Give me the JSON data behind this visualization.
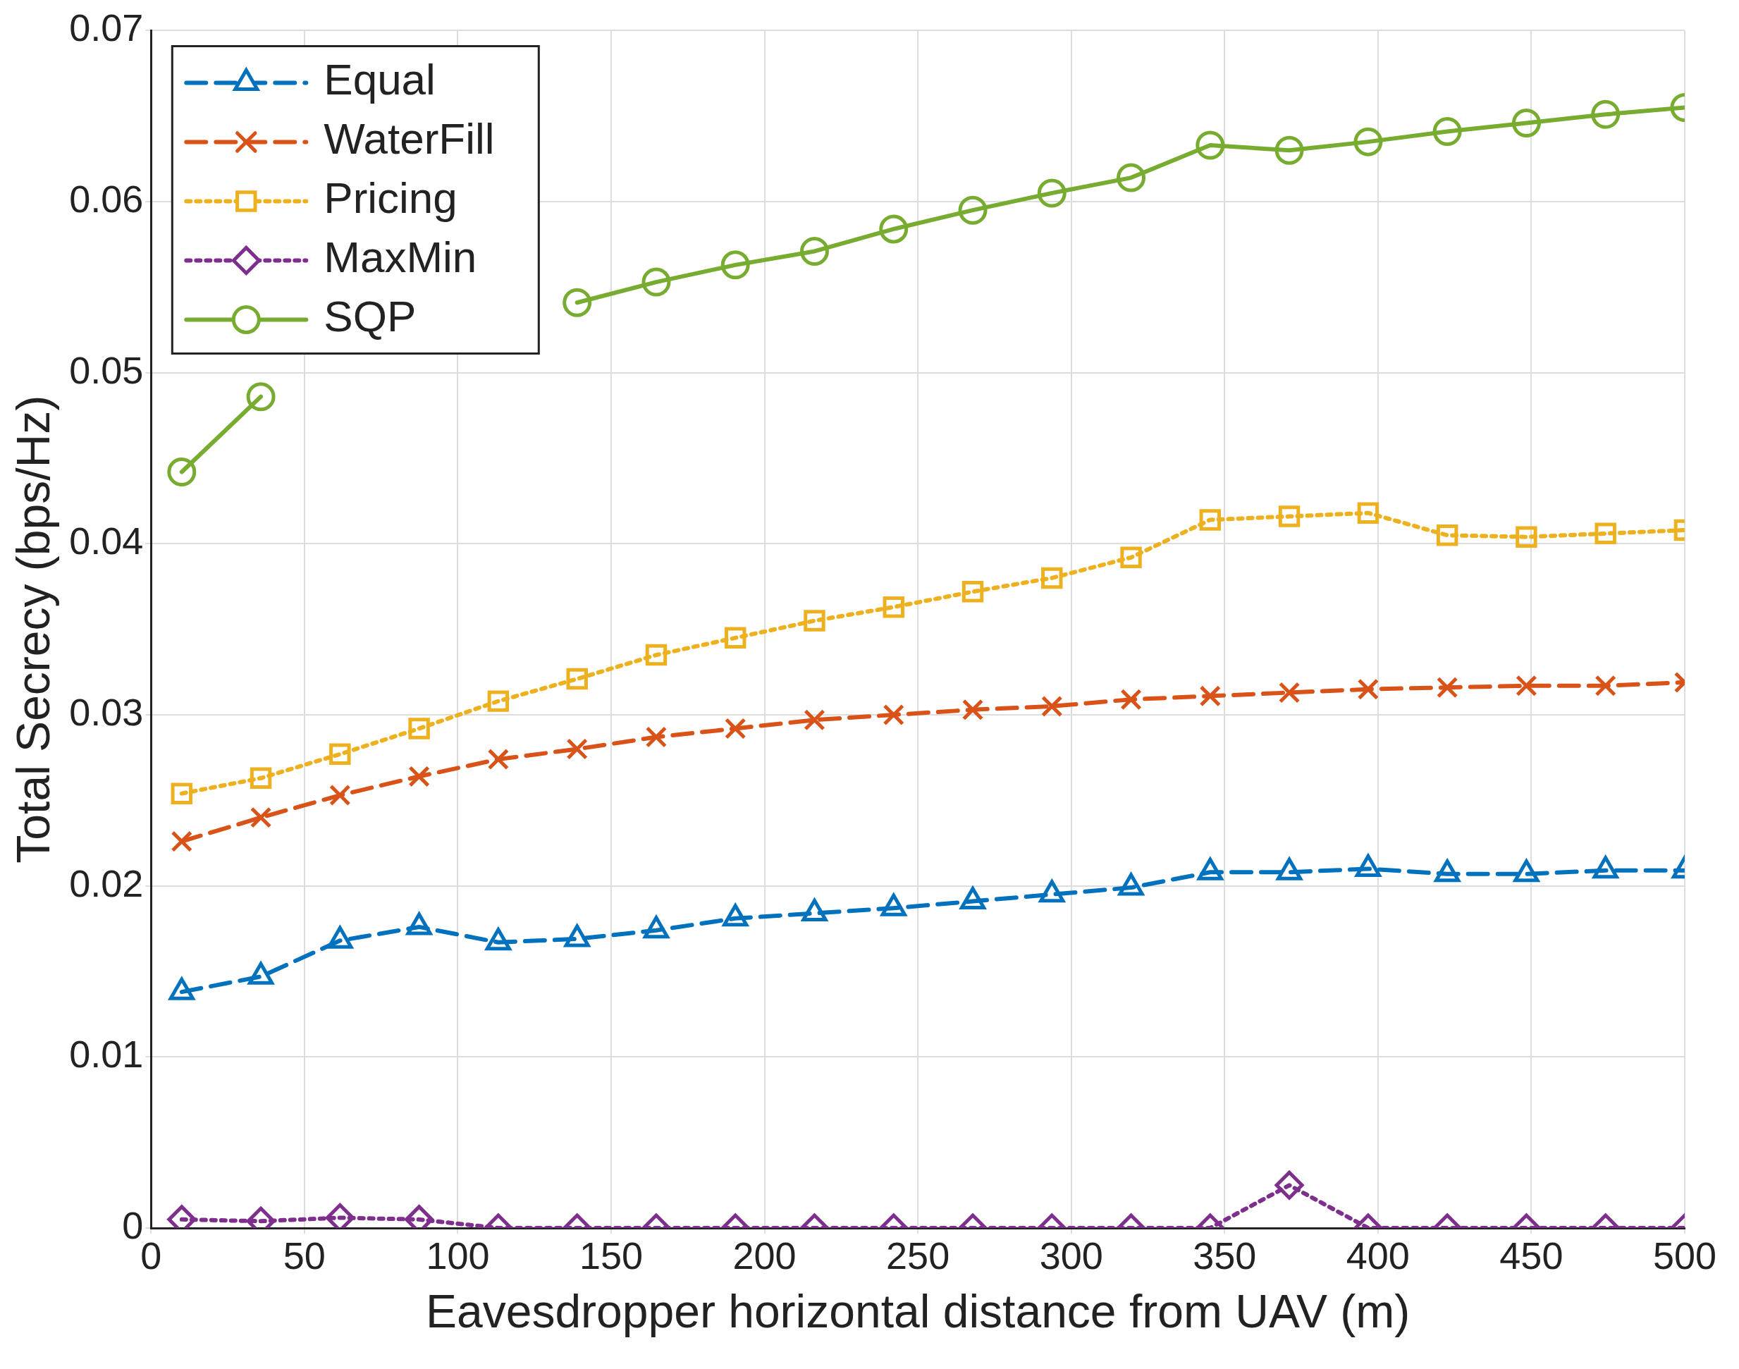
{
  "chart_data": {
    "type": "line",
    "xlabel": "Eavesdropper horizontal distance from UAV (m)",
    "ylabel": "Total Secrecy (bps/Hz)",
    "x": [
      10,
      35.8,
      61.6,
      87.4,
      113.2,
      138.9,
      164.7,
      190.5,
      216.3,
      242.1,
      267.9,
      293.7,
      319.5,
      345.3,
      371.1,
      396.8,
      422.6,
      448.4,
      474.2,
      500
    ],
    "series": [
      {
        "name": "Equal",
        "color": "#0072bd",
        "marker": "triangle",
        "line_style": "dashed",
        "values": [
          0.0138,
          0.0147,
          0.0168,
          0.0176,
          0.0167,
          0.0169,
          0.0174,
          0.0181,
          0.0184,
          0.0187,
          0.0191,
          0.0195,
          0.0199,
          0.0208,
          0.0208,
          0.021,
          0.0207,
          0.0207,
          0.0209,
          0.0209
        ]
      },
      {
        "name": "WaterFill",
        "color": "#d95319",
        "marker": "cross",
        "line_style": "dashed",
        "values": [
          0.0226,
          0.024,
          0.0253,
          0.0264,
          0.0274,
          0.028,
          0.0287,
          0.0292,
          0.0297,
          0.03,
          0.0303,
          0.0305,
          0.0309,
          0.0311,
          0.0313,
          0.0315,
          0.0316,
          0.0317,
          0.0317,
          0.0319
        ]
      },
      {
        "name": "Pricing",
        "color": "#edb120",
        "marker": "square",
        "line_style": "dotted",
        "values": [
          0.0254,
          0.0263,
          0.0277,
          0.0292,
          0.0308,
          0.0321,
          0.0335,
          0.0345,
          0.0355,
          0.0363,
          0.0372,
          0.038,
          0.0392,
          0.0414,
          0.0416,
          0.0418,
          0.0405,
          0.0404,
          0.0406,
          0.0408
        ]
      },
      {
        "name": "MaxMin",
        "color": "#7e2f8e",
        "marker": "diamond",
        "line_style": "dotted",
        "values": [
          0.0005,
          0.0004,
          0.0006,
          0.0005,
          0,
          0,
          0,
          0,
          0,
          0,
          0,
          0,
          0,
          0,
          0.0025,
          0,
          0,
          0,
          0,
          0
        ]
      },
      {
        "name": "SQP",
        "color": "#77ac30",
        "marker": "circle",
        "line_style": "solid",
        "values": [
          0.0442,
          0.0486,
          null,
          null,
          null,
          0.0541,
          0.0553,
          0.0563,
          0.0571,
          0.0584,
          0.0595,
          0.0605,
          0.0614,
          0.0633,
          0.063,
          0.0635,
          0.0641,
          0.0646,
          0.0651,
          0.0655
        ]
      }
    ],
    "xlim": [
      0,
      500
    ],
    "xticks": [
      0,
      50,
      100,
      150,
      200,
      250,
      300,
      350,
      400,
      450,
      500
    ],
    "ylim": [
      0,
      0.07
    ],
    "yticks": [
      0,
      0.01,
      0.02,
      0.03,
      0.04,
      0.05,
      0.06,
      0.07
    ],
    "grid": true,
    "legend": "top left"
  }
}
